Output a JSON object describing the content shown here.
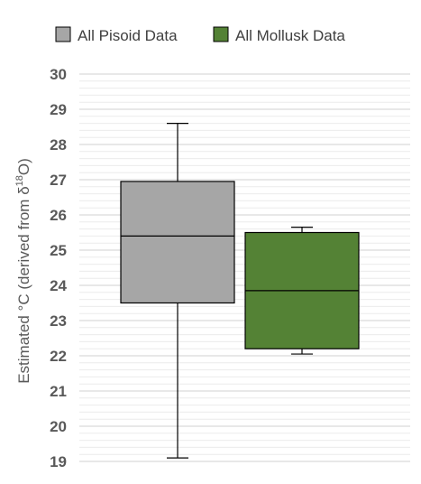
{
  "chart_data": {
    "type": "box",
    "title": "",
    "xlabel": "",
    "ylabel": {
      "prefix": "Estimated °C (derived from δ",
      "superscript": "18",
      "suffix": "O)"
    },
    "ylim": [
      19,
      30
    ],
    "yticks": [
      "19",
      "20",
      "21",
      "22",
      "23",
      "24",
      "25",
      "26",
      "27",
      "28",
      "29",
      "30"
    ],
    "minor_grid_step": 0.2,
    "grid": true,
    "legend_position": "top",
    "series": [
      {
        "name": "All Pisoid Data",
        "color": "#a6a6a6",
        "min": 19.1,
        "q1": 23.5,
        "median": 25.4,
        "q3": 26.95,
        "max": 28.6
      },
      {
        "name": "All Mollusk Data",
        "color": "#548235",
        "min": 22.05,
        "q1": 22.2,
        "median": 23.85,
        "q3": 25.5,
        "max": 25.65
      }
    ]
  }
}
